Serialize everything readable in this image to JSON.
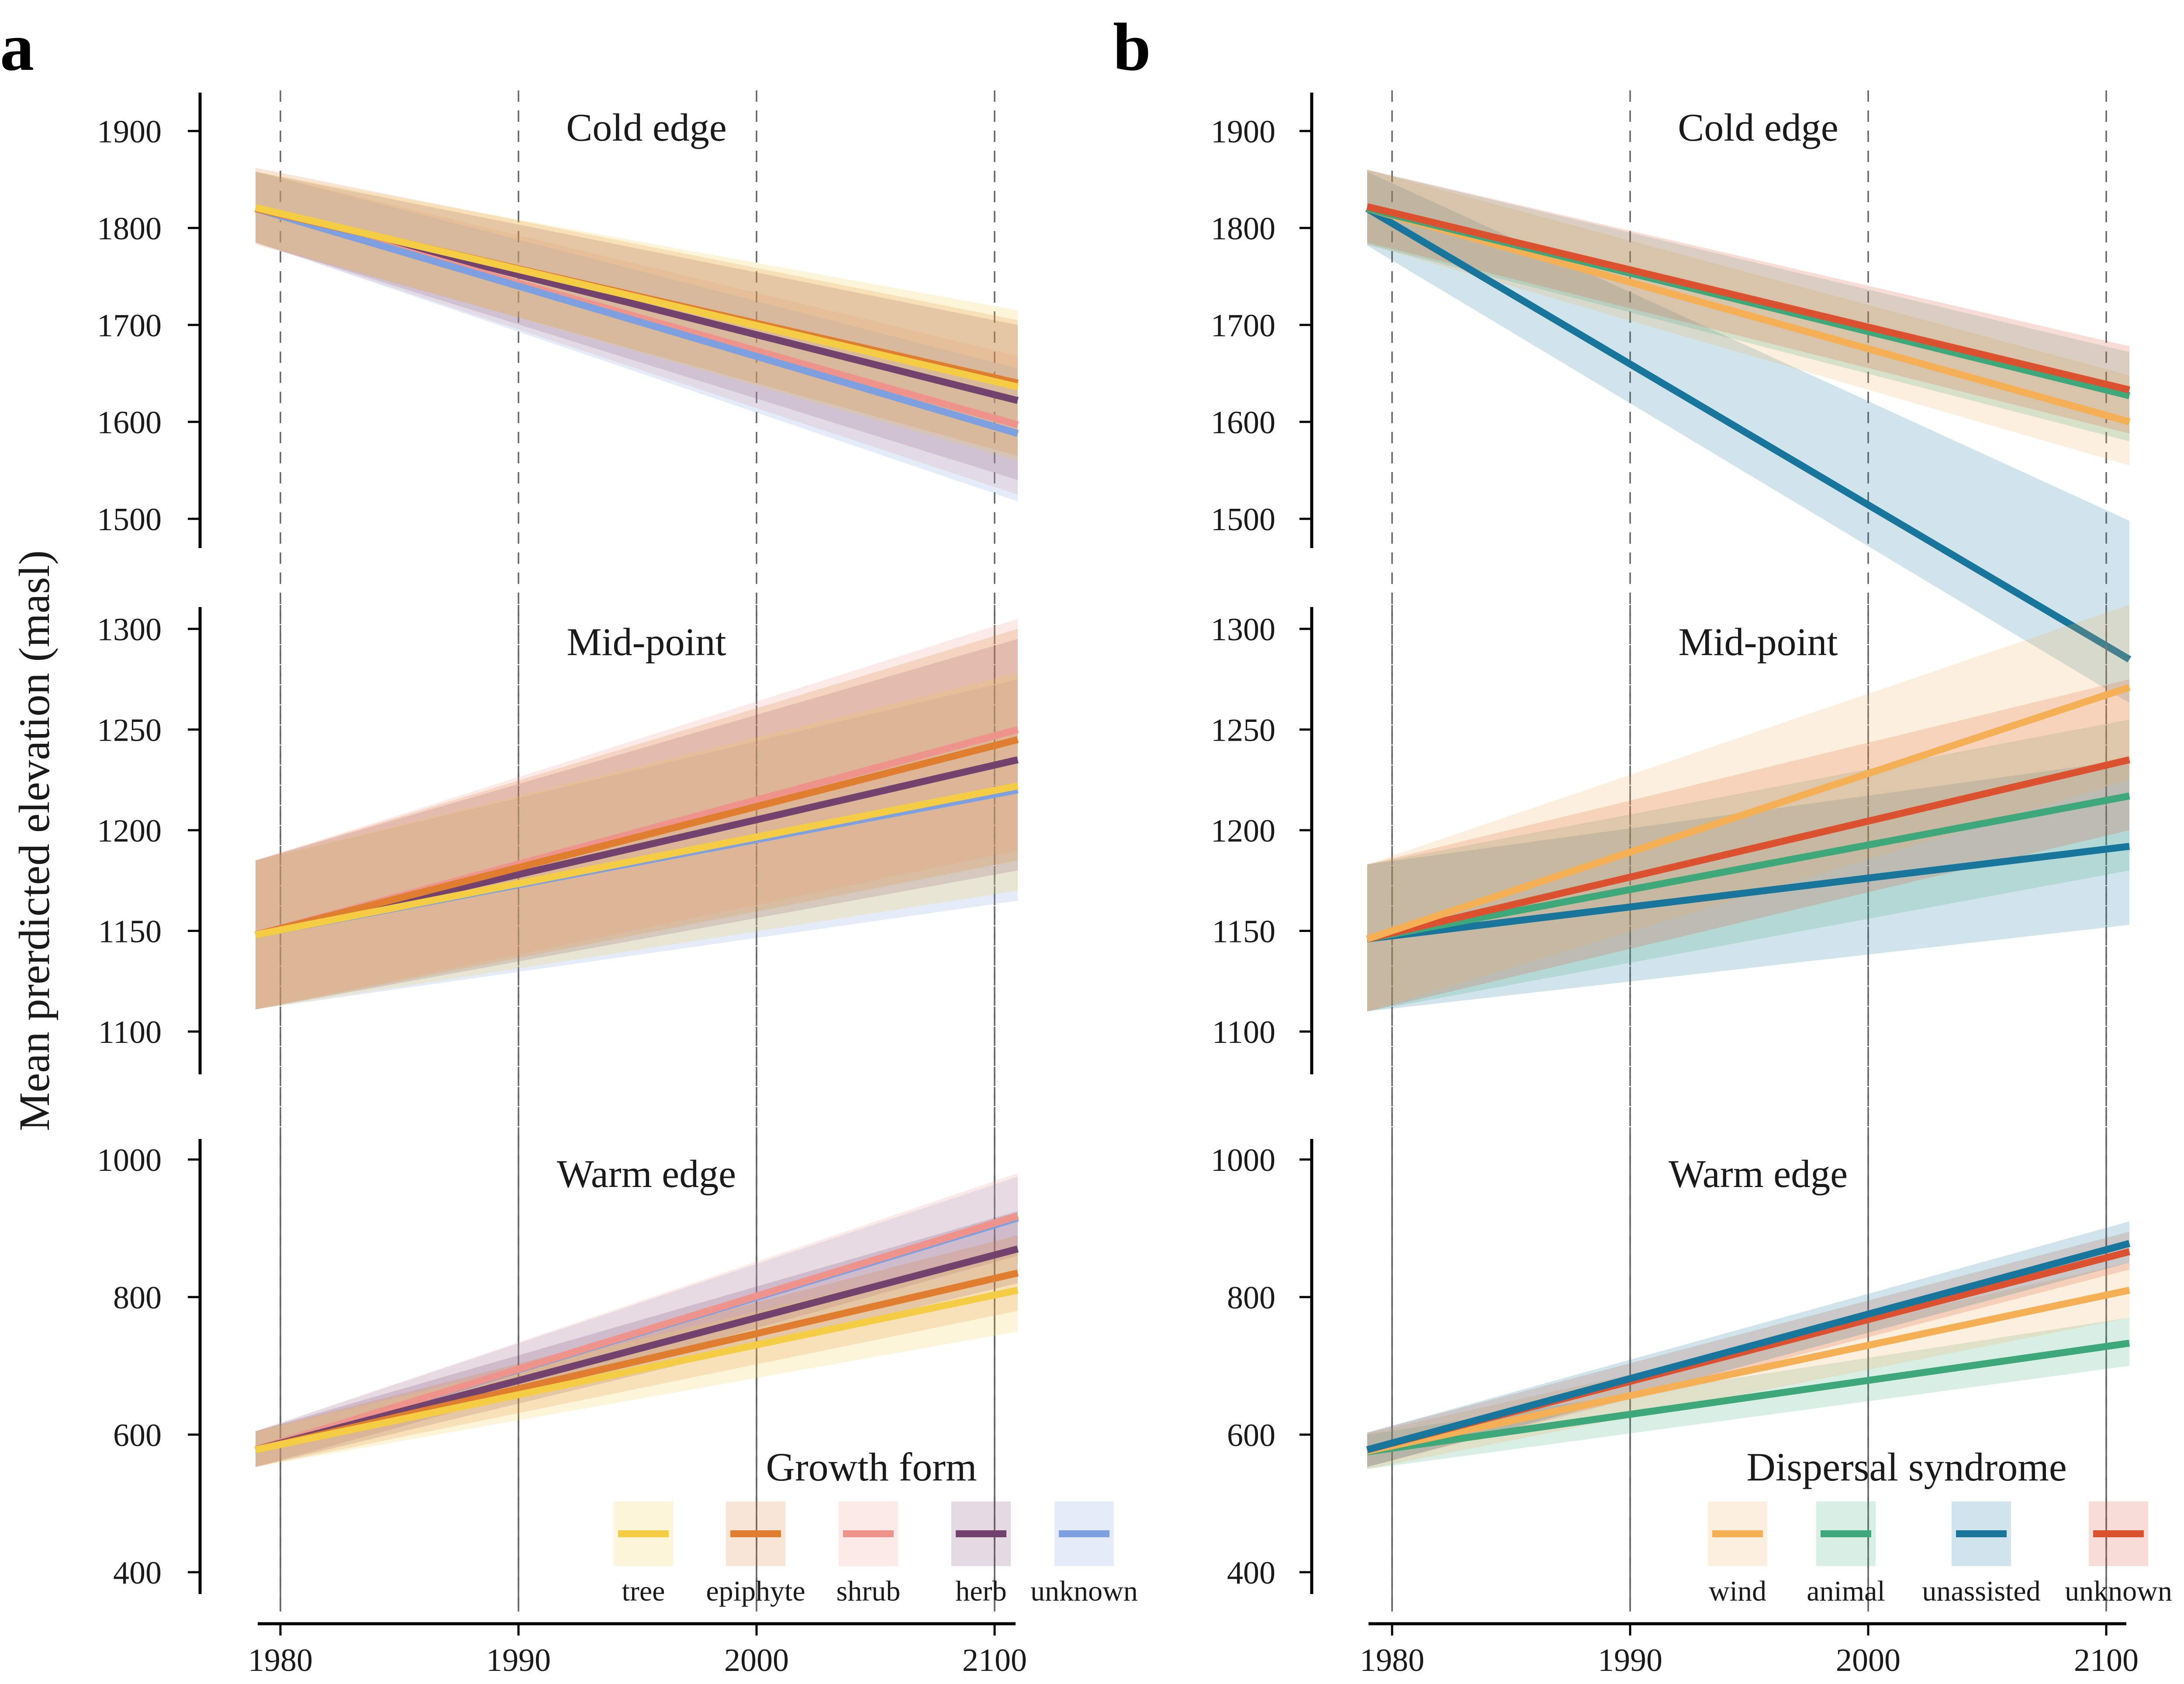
{
  "figure": {
    "ylabel": "Mean prerdicted elevation (masl)",
    "panels": [
      {
        "letter": "a",
        "legend_title": "Growth form"
      },
      {
        "letter": "b",
        "legend_title": "Dispersal syndrome"
      }
    ]
  },
  "colors": {
    "tree": "#f5cd45",
    "epiphyte": "#e07e2f",
    "shrub": "#ee948c",
    "herb": "#73436e",
    "unknown_growth": "#7e9fe0",
    "wind": "#f5b055",
    "animal": "#3fa87b",
    "unassisted": "#18769d",
    "unknown_dispersal": "#dc5230"
  },
  "chart_data": [
    {
      "type": "line",
      "panel": "a",
      "facet": "Cold edge",
      "x": [
        1979,
        2101
      ],
      "xticks": [
        1980,
        1990,
        2000,
        2100
      ],
      "yticks": [
        1500,
        1600,
        1700,
        1800,
        1900
      ],
      "ylim": [
        1465,
        1940
      ],
      "series": [
        {
          "name": "herb",
          "color_key": "herb",
          "values": [
            1820,
            1622
          ],
          "ci_low": [
            1785,
            1540
          ],
          "ci_high": [
            1858,
            1700
          ]
        },
        {
          "name": "shrub",
          "color_key": "shrub",
          "values": [
            1820,
            1597
          ],
          "ci_low": [
            1785,
            1525
          ],
          "ci_high": [
            1858,
            1668
          ]
        },
        {
          "name": "unknown",
          "color_key": "unknown_growth",
          "values": [
            1820,
            1588
          ],
          "ci_low": [
            1785,
            1518
          ],
          "ci_high": [
            1858,
            1655
          ]
        },
        {
          "name": "epiphyte",
          "color_key": "epiphyte",
          "values": [
            1820,
            1640
          ],
          "ci_low": [
            1783,
            1565
          ],
          "ci_high": [
            1862,
            1705
          ]
        },
        {
          "name": "tree",
          "color_key": "tree",
          "values": [
            1821,
            1636
          ],
          "ci_low": [
            1785,
            1560
          ],
          "ci_high": [
            1858,
            1715
          ]
        }
      ]
    },
    {
      "type": "line",
      "panel": "a",
      "facet": "Mid-point",
      "x": [
        1979,
        2101
      ],
      "xticks": [
        1980,
        1990,
        2000,
        2100
      ],
      "yticks": [
        1100,
        1150,
        1200,
        1250,
        1300
      ],
      "ylim": [
        1079,
        1312
      ],
      "series": [
        {
          "name": "unknown",
          "color_key": "unknown_growth",
          "values": [
            1148,
            1220
          ],
          "ci_low": [
            1111,
            1165
          ],
          "ci_high": [
            1185,
            1275
          ]
        },
        {
          "name": "herb",
          "color_key": "herb",
          "values": [
            1148,
            1235
          ],
          "ci_low": [
            1111,
            1180
          ],
          "ci_high": [
            1185,
            1295
          ]
        },
        {
          "name": "shrub",
          "color_key": "shrub",
          "values": [
            1148,
            1250
          ],
          "ci_low": [
            1111,
            1190
          ],
          "ci_high": [
            1185,
            1305
          ]
        },
        {
          "name": "epiphyte",
          "color_key": "epiphyte",
          "values": [
            1148,
            1245
          ],
          "ci_low": [
            1111,
            1185
          ],
          "ci_high": [
            1185,
            1300
          ]
        },
        {
          "name": "tree",
          "color_key": "tree",
          "values": [
            1148,
            1222
          ],
          "ci_low": [
            1111,
            1170
          ],
          "ci_high": [
            1185,
            1278
          ]
        }
      ]
    },
    {
      "type": "line",
      "panel": "a",
      "facet": "Warm edge",
      "x": [
        1979,
        2101
      ],
      "xticks": [
        1980,
        1990,
        2000,
        2100
      ],
      "yticks": [
        400,
        600,
        800,
        1000
      ],
      "ylim": [
        370,
        1030
      ],
      "series": [
        {
          "name": "unknown",
          "color_key": "unknown_growth",
          "values": [
            578,
            915
          ],
          "ci_low": [
            553,
            860
          ],
          "ci_high": [
            605,
            975
          ]
        },
        {
          "name": "shrub",
          "color_key": "shrub",
          "values": [
            578,
            918
          ],
          "ci_low": [
            553,
            860
          ],
          "ci_high": [
            605,
            980
          ]
        },
        {
          "name": "herb",
          "color_key": "herb",
          "values": [
            578,
            870
          ],
          "ci_low": [
            553,
            820
          ],
          "ci_high": [
            605,
            925
          ]
        },
        {
          "name": "epiphyte",
          "color_key": "epiphyte",
          "values": [
            578,
            835
          ],
          "ci_low": [
            553,
            780
          ],
          "ci_high": [
            605,
            890
          ]
        },
        {
          "name": "tree",
          "color_key": "tree",
          "values": [
            578,
            810
          ],
          "ci_low": [
            553,
            750
          ],
          "ci_high": [
            605,
            870
          ]
        }
      ]
    },
    {
      "type": "line",
      "panel": "b",
      "facet": "Cold edge",
      "x": [
        1979,
        2101
      ],
      "xticks": [
        1980,
        1990,
        2000,
        2100
      ],
      "yticks": [
        1500,
        1600,
        1700,
        1800,
        1900
      ],
      "ylim": [
        1465,
        1940
      ],
      "series": [
        {
          "name": "unassisted",
          "color_key": "unassisted",
          "values": [
            1820,
            1355
          ],
          "ci_low": [
            1782,
            1310
          ],
          "ci_high": [
            1858,
            1498
          ]
        },
        {
          "name": "wind",
          "color_key": "wind",
          "values": [
            1820,
            1600
          ],
          "ci_low": [
            1783,
            1555
          ],
          "ci_high": [
            1860,
            1648
          ]
        },
        {
          "name": "animal",
          "color_key": "animal",
          "values": [
            1820,
            1627
          ],
          "ci_low": [
            1783,
            1580
          ],
          "ci_high": [
            1860,
            1672
          ]
        },
        {
          "name": "unknown",
          "color_key": "unknown_dispersal",
          "values": [
            1822,
            1633
          ],
          "ci_low": [
            1785,
            1588
          ],
          "ci_high": [
            1860,
            1678
          ]
        }
      ]
    },
    {
      "type": "line",
      "panel": "b",
      "facet": "Mid-point",
      "x": [
        1979,
        2101
      ],
      "xticks": [
        1980,
        1990,
        2000,
        2100
      ],
      "yticks": [
        1100,
        1150,
        1200,
        1250,
        1300
      ],
      "ylim": [
        1079,
        1312
      ],
      "series": [
        {
          "name": "unassisted",
          "color_key": "unassisted",
          "values": [
            1146,
            1192
          ],
          "ci_low": [
            1110,
            1153
          ],
          "ci_high": [
            1183,
            1235
          ]
        },
        {
          "name": "animal",
          "color_key": "animal",
          "values": [
            1146,
            1217
          ],
          "ci_low": [
            1110,
            1180
          ],
          "ci_high": [
            1183,
            1255
          ]
        },
        {
          "name": "unknown",
          "color_key": "unknown_dispersal",
          "values": [
            1146,
            1235
          ],
          "ci_low": [
            1110,
            1200
          ],
          "ci_high": [
            1183,
            1275
          ]
        },
        {
          "name": "wind",
          "color_key": "wind",
          "values": [
            1146,
            1271
          ],
          "ci_low": [
            1110,
            1225
          ],
          "ci_high": [
            1183,
            1312
          ]
        }
      ]
    },
    {
      "type": "line",
      "panel": "b",
      "facet": "Warm edge",
      "x": [
        1979,
        2101
      ],
      "xticks": [
        1980,
        1990,
        2000,
        2100
      ],
      "yticks": [
        400,
        600,
        800,
        1000
      ],
      "ylim": [
        370,
        1030
      ],
      "series": [
        {
          "name": "animal",
          "color_key": "animal",
          "values": [
            575,
            733
          ],
          "ci_low": [
            550,
            700
          ],
          "ci_high": [
            600,
            770
          ]
        },
        {
          "name": "wind",
          "color_key": "wind",
          "values": [
            576,
            810
          ],
          "ci_low": [
            550,
            770
          ],
          "ci_high": [
            602,
            850
          ]
        },
        {
          "name": "unknown",
          "color_key": "unknown_dispersal",
          "values": [
            578,
            866
          ],
          "ci_low": [
            553,
            840
          ],
          "ci_high": [
            603,
            895
          ]
        },
        {
          "name": "unassisted",
          "color_key": "unassisted",
          "values": [
            578,
            878
          ],
          "ci_low": [
            553,
            850
          ],
          "ci_high": [
            603,
            910
          ]
        }
      ]
    }
  ],
  "legends": [
    {
      "panel": "a",
      "title": "Growth form",
      "items": [
        {
          "label": "tree",
          "color_key": "tree"
        },
        {
          "label": "epiphyte",
          "color_key": "epiphyte"
        },
        {
          "label": "shrub",
          "color_key": "shrub"
        },
        {
          "label": "herb",
          "color_key": "herb"
        },
        {
          "label": "unknown",
          "color_key": "unknown_growth"
        }
      ]
    },
    {
      "panel": "b",
      "title": "Dispersal syndrome",
      "items": [
        {
          "label": "wind",
          "color_key": "wind"
        },
        {
          "label": "animal",
          "color_key": "animal"
        },
        {
          "label": "unassisted",
          "color_key": "unassisted"
        },
        {
          "label": "unknown",
          "color_key": "unknown_dispersal"
        }
      ]
    }
  ]
}
